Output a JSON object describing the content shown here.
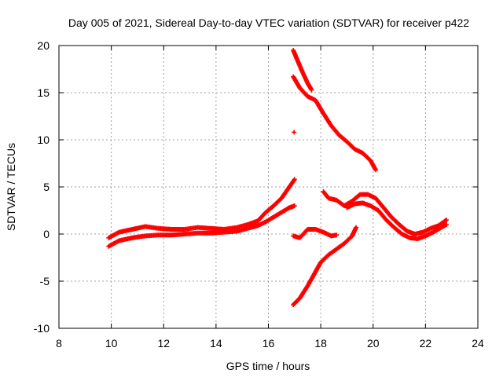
{
  "chart_data": {
    "type": "scatter",
    "title": "Day 005 of 2021, Sidereal Day-to-day VTEC variation (SDTVAR) for receiver p422",
    "xlabel": "GPS time / hours",
    "ylabel": "SDTVAR / TECUs",
    "xlim": [
      8,
      24
    ],
    "ylim": [
      -10,
      20
    ],
    "xticks": [
      8,
      10,
      12,
      14,
      16,
      18,
      20,
      22,
      24
    ],
    "yticks": [
      -10,
      -5,
      0,
      5,
      10,
      15,
      20
    ],
    "grid": true,
    "marker": "+",
    "color": "#ff0000",
    "series": [
      {
        "name": "main-band-upper",
        "points": [
          [
            9.9,
            -0.4
          ],
          [
            10.3,
            0.2
          ],
          [
            10.8,
            0.5
          ],
          [
            11.3,
            0.8
          ],
          [
            11.8,
            0.6
          ],
          [
            12.3,
            0.5
          ],
          [
            12.8,
            0.5
          ],
          [
            13.3,
            0.7
          ],
          [
            13.8,
            0.6
          ],
          [
            14.3,
            0.5
          ],
          [
            14.8,
            0.7
          ],
          [
            15.2,
            1.0
          ],
          [
            15.6,
            1.4
          ],
          [
            15.9,
            2.3
          ],
          [
            16.2,
            3.0
          ],
          [
            16.5,
            3.8
          ],
          [
            16.8,
            5.0
          ],
          [
            17.0,
            5.8
          ]
        ]
      },
      {
        "name": "main-band-lower",
        "points": [
          [
            9.9,
            -1.3
          ],
          [
            10.3,
            -0.7
          ],
          [
            10.8,
            -0.4
          ],
          [
            11.3,
            -0.2
          ],
          [
            11.8,
            -0.1
          ],
          [
            12.3,
            -0.1
          ],
          [
            12.8,
            0.0
          ],
          [
            13.3,
            0.1
          ],
          [
            13.8,
            0.1
          ],
          [
            14.3,
            0.2
          ],
          [
            14.8,
            0.3
          ],
          [
            15.2,
            0.6
          ],
          [
            15.6,
            0.9
          ],
          [
            15.9,
            1.3
          ],
          [
            16.2,
            1.8
          ],
          [
            16.5,
            2.3
          ],
          [
            16.8,
            2.8
          ],
          [
            17.0,
            3.0
          ]
        ]
      },
      {
        "name": "branch-upper-1",
        "points": [
          [
            16.95,
            19.5
          ],
          [
            17.1,
            18.5
          ],
          [
            17.3,
            17.2
          ],
          [
            17.5,
            16.0
          ],
          [
            17.65,
            15.3
          ]
        ]
      },
      {
        "name": "branch-upper-2",
        "points": [
          [
            16.95,
            16.7
          ],
          [
            17.2,
            15.5
          ],
          [
            17.5,
            14.6
          ],
          [
            17.8,
            14.2
          ],
          [
            18.1,
            12.8
          ],
          [
            18.4,
            11.5
          ],
          [
            18.7,
            10.5
          ],
          [
            19.0,
            9.8
          ],
          [
            19.3,
            9.0
          ],
          [
            19.6,
            8.6
          ],
          [
            19.9,
            7.8
          ],
          [
            20.1,
            6.8
          ]
        ]
      },
      {
        "name": "isolated-point",
        "points": [
          [
            16.98,
            10.8
          ]
        ]
      },
      {
        "name": "branch-lower",
        "points": [
          [
            16.95,
            -7.5
          ],
          [
            17.2,
            -6.8
          ],
          [
            17.5,
            -5.5
          ],
          [
            17.8,
            -4.0
          ],
          [
            18.0,
            -3.0
          ],
          [
            18.3,
            -2.2
          ],
          [
            18.6,
            -1.6
          ],
          [
            18.9,
            -1.0
          ],
          [
            19.2,
            -0.2
          ],
          [
            19.35,
            0.7
          ]
        ]
      },
      {
        "name": "near-zero-branch",
        "points": [
          [
            16.95,
            -0.2
          ],
          [
            17.2,
            -0.4
          ],
          [
            17.5,
            0.5
          ],
          [
            17.8,
            0.5
          ],
          [
            18.1,
            0.2
          ],
          [
            18.4,
            -0.2
          ],
          [
            18.6,
            -0.1
          ]
        ]
      },
      {
        "name": "evening-band-upper",
        "points": [
          [
            18.1,
            4.5
          ],
          [
            18.3,
            3.8
          ],
          [
            18.6,
            3.6
          ],
          [
            18.9,
            3.0
          ],
          [
            19.2,
            3.5
          ],
          [
            19.5,
            4.2
          ],
          [
            19.8,
            4.2
          ],
          [
            20.1,
            3.8
          ],
          [
            20.4,
            2.8
          ],
          [
            20.7,
            1.8
          ],
          [
            21.0,
            1.0
          ],
          [
            21.3,
            0.3
          ],
          [
            21.6,
            0.0
          ],
          [
            21.9,
            0.2
          ],
          [
            22.2,
            0.6
          ],
          [
            22.5,
            0.9
          ],
          [
            22.8,
            1.5
          ]
        ]
      },
      {
        "name": "evening-band-lower",
        "points": [
          [
            19.0,
            2.8
          ],
          [
            19.3,
            3.2
          ],
          [
            19.6,
            3.3
          ],
          [
            19.9,
            3.0
          ],
          [
            20.2,
            2.5
          ],
          [
            20.5,
            1.5
          ],
          [
            20.8,
            0.7
          ],
          [
            21.1,
            0.0
          ],
          [
            21.4,
            -0.4
          ],
          [
            21.7,
            -0.5
          ],
          [
            22.0,
            -0.2
          ],
          [
            22.3,
            0.2
          ],
          [
            22.6,
            0.7
          ],
          [
            22.8,
            1.0
          ]
        ]
      }
    ]
  }
}
